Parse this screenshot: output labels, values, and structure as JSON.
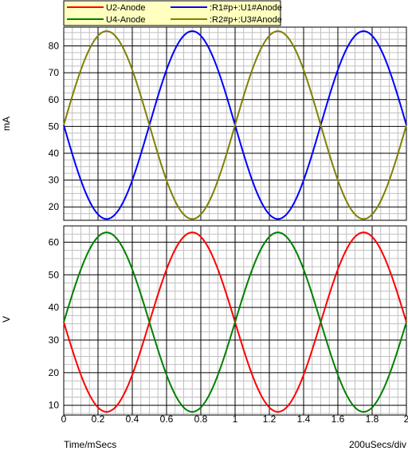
{
  "chart_data": [
    {
      "type": "line",
      "panel": "top",
      "ylabel": "mA",
      "ylim": [
        15,
        87
      ],
      "yticks": [
        20,
        30,
        40,
        50,
        60,
        70,
        80
      ],
      "xlim": [
        0,
        2
      ],
      "grid": true,
      "legend_placement": "top",
      "series": [
        {
          "name": ":R1#p+:U1#Anode",
          "color": "#0000ff",
          "waveform": "sine",
          "period_ms": 1.0,
          "offset": 50.5,
          "amplitude": 35,
          "phase": "inverted",
          "min": 15.5,
          "max": 85.5
        },
        {
          "name": ":R2#p+:U3#Anode",
          "color": "#808000",
          "waveform": "sine",
          "period_ms": 1.0,
          "offset": 50.5,
          "amplitude": 35,
          "phase": "normal",
          "min": 15.5,
          "max": 85.5
        }
      ]
    },
    {
      "type": "line",
      "panel": "bottom",
      "ylabel": "V",
      "ylim": [
        7,
        65
      ],
      "yticks": [
        10,
        20,
        30,
        40,
        50,
        60
      ],
      "xlim": [
        0,
        2
      ],
      "xticks": [
        "0",
        "0.2",
        "0.4",
        "0.6",
        "0.8",
        "1",
        "1.2",
        "1.4",
        "1.6",
        "1.8",
        "2"
      ],
      "xlabel": "Time/mSecs",
      "scale_label": "200uSecs/div",
      "grid": true,
      "series": [
        {
          "name": "U2-Anode",
          "color": "#ff0000",
          "waveform": "sine",
          "period_ms": 1.0,
          "offset": 35.5,
          "amplitude": 27.5,
          "phase": "inverted",
          "min": 8,
          "max": 63
        },
        {
          "name": "U4-Anode",
          "color": "#008000",
          "waveform": "sine",
          "period_ms": 1.0,
          "offset": 35.5,
          "amplitude": 27.5,
          "phase": "normal",
          "min": 8,
          "max": 63
        }
      ]
    }
  ],
  "legend": [
    {
      "label": "U2-Anode",
      "color": "#ff0000"
    },
    {
      "label": ":R1#p+:U1#Anode",
      "color": "#0000ff"
    },
    {
      "label": "U4-Anode",
      "color": "#008000"
    },
    {
      "label": ":R2#p+:U3#Anode",
      "color": "#808000"
    }
  ],
  "colors": {
    "grid_major": "#000000",
    "grid_minor": "#c0c0c0",
    "legend_bg": "#ffffc0"
  }
}
